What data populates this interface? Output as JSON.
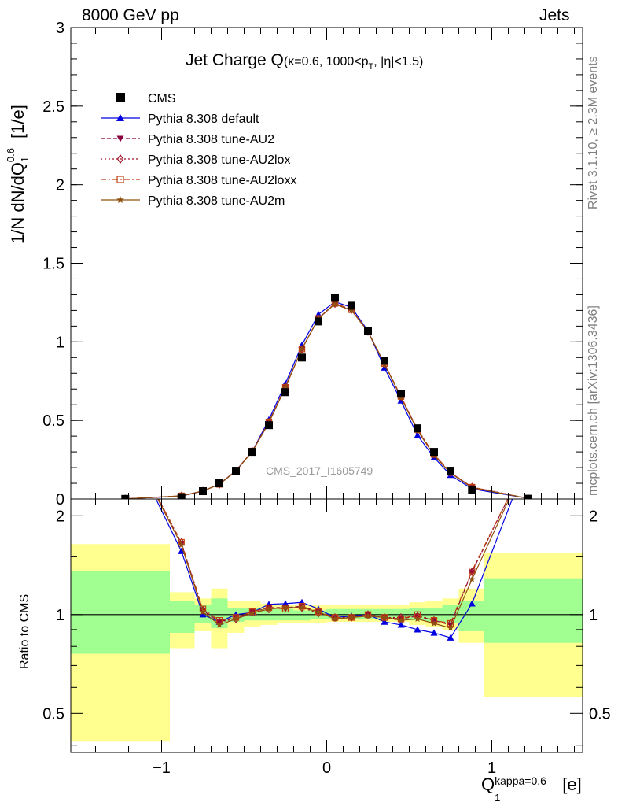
{
  "header": {
    "left": "8000 GeV pp",
    "right": "Jets"
  },
  "side_labels": {
    "rivet": "Rivet 3.1.10, ≥ 2.3M events",
    "mcplots": "mcplots.cern.ch [arXiv:1306.3436]"
  },
  "plot_title": {
    "main": "Jet Charge Q",
    "sub": "(κ=0.6, 1000<p",
    "sub_sub": "T",
    "sub_end": ", |η|<1.5)"
  },
  "y_label_main": {
    "prefix": "1/N dN/dQ",
    "sup": "0.6",
    "sub": "1",
    "suffix": " [1/e]"
  },
  "y_label_ratio": "Ratio to CMS",
  "x_label": {
    "main": "Q",
    "sup": "kappa=0.6",
    "sub": "1",
    "suffix": " [e]"
  },
  "watermark": "CMS_2017_I1605749",
  "colors": {
    "cms": "#000000",
    "default": "#0000e0",
    "au2": "#8b0040",
    "au2lox": "#a01028",
    "au2loxx": "#c04010",
    "au2m": "#905010",
    "band_green": "#a0ff90",
    "band_yellow": "#ffff90"
  },
  "chart_data": {
    "type": "line",
    "xlim": [
      -1.55,
      1.55
    ],
    "ylim_main": [
      0,
      3
    ],
    "ylim_ratio": [
      0.38,
      2.25
    ],
    "x_ticks": [
      "−1",
      "0",
      "1"
    ],
    "x_tick_values": [
      -1,
      0,
      1
    ],
    "y_ticks_main": [
      "0",
      "0.5",
      "1",
      "1.5",
      "2",
      "2.5",
      "3"
    ],
    "y_tick_values_main": [
      0,
      0.5,
      1,
      1.5,
      2,
      2.5,
      3
    ],
    "y_ticks_ratio": [
      "0.5",
      "1",
      "2"
    ],
    "y_tick_values_ratio": [
      0.5,
      1,
      2
    ],
    "bins": [
      [
        -1.55,
        -0.95
      ],
      [
        -0.95,
        -0.8
      ],
      [
        -0.8,
        -0.7
      ],
      [
        -0.7,
        -0.6
      ],
      [
        -0.6,
        -0.5
      ],
      [
        -0.5,
        -0.4
      ],
      [
        -0.4,
        -0.3
      ],
      [
        -0.3,
        -0.2
      ],
      [
        -0.2,
        -0.1
      ],
      [
        -0.1,
        0.0
      ],
      [
        0.0,
        0.1
      ],
      [
        0.1,
        0.2
      ],
      [
        0.2,
        0.3
      ],
      [
        0.3,
        0.4
      ],
      [
        0.4,
        0.5
      ],
      [
        0.5,
        0.6
      ],
      [
        0.6,
        0.7
      ],
      [
        0.7,
        0.8
      ],
      [
        0.8,
        0.95
      ],
      [
        0.95,
        1.55
      ]
    ],
    "x": [
      -1.22,
      -0.88,
      -0.75,
      -0.65,
      -0.55,
      -0.45,
      -0.35,
      -0.25,
      -0.15,
      -0.05,
      0.05,
      0.15,
      0.25,
      0.35,
      0.45,
      0.55,
      0.65,
      0.75,
      0.88,
      1.22
    ],
    "cms": [
      0.001,
      0.012,
      0.05,
      0.1,
      0.18,
      0.3,
      0.47,
      0.68,
      0.9,
      1.13,
      1.28,
      1.23,
      1.07,
      0.88,
      0.67,
      0.45,
      0.3,
      0.18,
      0.06,
      0.002
    ],
    "bands": {
      "green": [
        [
          0.76,
          1.36
        ],
        [
          0.88,
          1.1
        ],
        [
          0.94,
          1.07
        ],
        [
          0.91,
          1.12
        ],
        [
          0.95,
          1.05
        ],
        [
          0.96,
          1.05
        ],
        [
          0.96,
          1.04
        ],
        [
          0.96,
          1.04
        ],
        [
          0.96,
          1.03
        ],
        [
          0.97,
          1.03
        ],
        [
          0.97,
          1.04
        ],
        [
          0.97,
          1.04
        ],
        [
          0.97,
          1.04
        ],
        [
          0.97,
          1.04
        ],
        [
          0.97,
          1.04
        ],
        [
          0.96,
          1.05
        ],
        [
          0.95,
          1.05
        ],
        [
          0.94,
          1.07
        ],
        [
          0.89,
          1.1
        ],
        [
          0.82,
          1.29
        ]
      ],
      "yellow": [
        [
          0.41,
          1.64
        ],
        [
          0.79,
          1.17
        ],
        [
          0.89,
          1.12
        ],
        [
          0.79,
          1.2
        ],
        [
          0.88,
          1.1
        ],
        [
          0.92,
          1.1
        ],
        [
          0.93,
          1.08
        ],
        [
          0.94,
          1.07
        ],
        [
          0.94,
          1.07
        ],
        [
          0.94,
          1.07
        ],
        [
          0.95,
          1.07
        ],
        [
          0.95,
          1.07
        ],
        [
          0.95,
          1.07
        ],
        [
          0.95,
          1.07
        ],
        [
          0.95,
          1.07
        ],
        [
          0.93,
          1.09
        ],
        [
          0.92,
          1.1
        ],
        [
          0.9,
          1.12
        ],
        [
          0.82,
          1.2
        ],
        [
          0.56,
          1.54
        ]
      ]
    },
    "series": [
      {
        "name": "CMS",
        "key": "cms",
        "marker": "square",
        "dash": "",
        "line": false
      },
      {
        "name": "Pythia 8.308 default",
        "key": "default",
        "marker": "triangle-up",
        "dash": "",
        "line": true,
        "values": [
          0.0011,
          0.019,
          0.05,
          0.095,
          0.18,
          0.305,
          0.505,
          0.735,
          0.98,
          1.175,
          1.255,
          1.22,
          1.07,
          0.835,
          0.625,
          0.405,
          0.265,
          0.152,
          0.065,
          0.0042
        ],
        "ratio": [
          3.5,
          1.56,
          1.0,
          0.95,
          1.0,
          1.015,
          1.075,
          1.08,
          1.09,
          1.04,
          0.98,
          0.99,
          1.0,
          0.95,
          0.93,
          0.9,
          0.88,
          0.85,
          1.08,
          3.0
        ]
      },
      {
        "name": "Pythia 8.308 tune-AU2",
        "key": "au2",
        "marker": "triangle-down",
        "dash": "5,3",
        "line": true,
        "values": [
          0.0011,
          0.02,
          0.051,
          0.094,
          0.18,
          0.305,
          0.49,
          0.715,
          0.955,
          1.15,
          1.245,
          1.205,
          1.065,
          0.86,
          0.65,
          0.44,
          0.283,
          0.168,
          0.075,
          0.004
        ],
        "ratio": [
          3.5,
          1.65,
          1.03,
          0.95,
          0.98,
          1.02,
          1.05,
          1.05,
          1.06,
          1.02,
          0.97,
          0.98,
          1.0,
          0.98,
          0.97,
          0.99,
          0.96,
          0.93,
          1.35,
          3.0
        ]
      },
      {
        "name": "Pythia 8.308 tune-AU2lox",
        "key": "au2lox",
        "marker": "diamond-open",
        "dash": "2,3",
        "line": true,
        "values": [
          0.0011,
          0.02,
          0.051,
          0.093,
          0.178,
          0.304,
          0.49,
          0.714,
          0.953,
          1.148,
          1.243,
          1.205,
          1.066,
          0.86,
          0.652,
          0.442,
          0.284,
          0.168,
          0.076,
          0.004
        ],
        "ratio": [
          3.5,
          1.66,
          1.03,
          0.95,
          0.97,
          1.02,
          1.04,
          1.05,
          1.05,
          1.01,
          0.98,
          0.98,
          1.0,
          0.98,
          0.98,
          0.99,
          0.96,
          0.94,
          1.35,
          3.0
        ]
      },
      {
        "name": "Pythia 8.308 tune-AU2loxx",
        "key": "au2loxx",
        "marker": "square-open",
        "dash": "7,3,2,3",
        "line": true,
        "values": [
          0.0011,
          0.02,
          0.052,
          0.094,
          0.18,
          0.305,
          0.49,
          0.71,
          0.955,
          1.148,
          1.245,
          1.205,
          1.068,
          0.862,
          0.653,
          0.443,
          0.284,
          0.17,
          0.075,
          0.004
        ],
        "ratio": [
          3.5,
          1.66,
          1.04,
          0.96,
          0.98,
          1.02,
          1.05,
          1.04,
          1.06,
          1.02,
          0.98,
          0.98,
          1.0,
          0.98,
          0.97,
          1.0,
          0.96,
          0.94,
          1.36,
          3.0
        ]
      },
      {
        "name": "Pythia 8.308 tune-AU2m",
        "key": "au2m",
        "marker": "star",
        "dash": "",
        "line": true,
        "values": [
          0.0011,
          0.02,
          0.051,
          0.093,
          0.178,
          0.303,
          0.485,
          0.71,
          0.955,
          1.15,
          1.24,
          1.2,
          1.065,
          0.86,
          0.645,
          0.435,
          0.278,
          0.165,
          0.072,
          0.004
        ],
        "ratio": [
          3.5,
          1.63,
          1.02,
          0.93,
          0.97,
          1.01,
          1.04,
          1.05,
          1.05,
          1.02,
          0.97,
          0.98,
          0.99,
          0.98,
          0.96,
          0.97,
          0.94,
          0.91,
          1.28,
          3.0
        ]
      }
    ]
  }
}
